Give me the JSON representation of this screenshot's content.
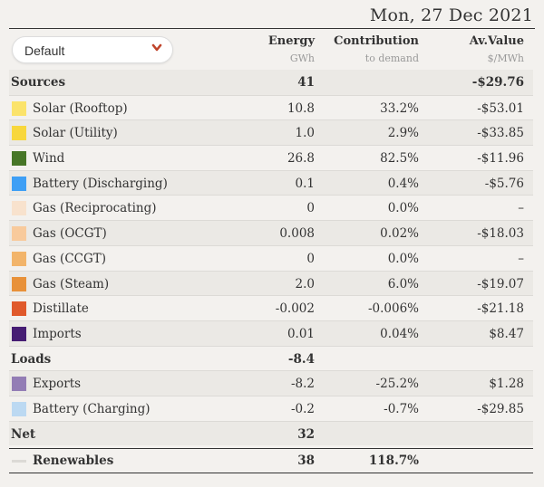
{
  "date": "Mon, 27 Dec 2021",
  "dropdown": {
    "value": "Default"
  },
  "columns": [
    {
      "title": "Energy",
      "sub": "GWh"
    },
    {
      "title": "Contribution",
      "sub": "to demand"
    },
    {
      "title": "Av.Value",
      "sub": "$/MWh"
    }
  ],
  "colors": {
    "solar_rooftop": "#fbe36b",
    "solar_utility": "#f8d73c",
    "wind": "#477627",
    "battery_discharging": "#3e9ff5",
    "gas_recip": "#f8e2cd",
    "gas_ocgt": "#f8ca9c",
    "gas_ccgt": "#f2b46a",
    "gas_steam": "#e89139",
    "distillate": "#e0592b",
    "imports": "#461d73",
    "exports": "#937db5",
    "battery_charging": "#bcd9f2",
    "chevron": "#c0442b"
  },
  "sources": {
    "label": "Sources",
    "energy": "41",
    "value": "-$29.76"
  },
  "rows": [
    {
      "name": "Solar (Rooftop)",
      "energy": "10.8",
      "contrib": "33.2%",
      "value": "-$53.01"
    },
    {
      "name": "Solar (Utility)",
      "energy": "1.0",
      "contrib": "2.9%",
      "value": "-$33.85"
    },
    {
      "name": "Wind",
      "energy": "26.8",
      "contrib": "82.5%",
      "value": "-$11.96"
    },
    {
      "name": "Battery (Discharging)",
      "energy": "0.1",
      "contrib": "0.4%",
      "value": "-$5.76"
    },
    {
      "name": "Gas (Reciprocating)",
      "energy": "0",
      "contrib": "0.0%",
      "value": "–"
    },
    {
      "name": "Gas (OCGT)",
      "energy": "0.008",
      "contrib": "0.02%",
      "value": "-$18.03"
    },
    {
      "name": "Gas (CCGT)",
      "energy": "0",
      "contrib": "0.0%",
      "value": "–"
    },
    {
      "name": "Gas (Steam)",
      "energy": "2.0",
      "contrib": "6.0%",
      "value": "-$19.07"
    },
    {
      "name": "Distillate",
      "energy": "-0.002",
      "contrib": "-0.006%",
      "value": "-$21.18"
    },
    {
      "name": "Imports",
      "energy": "0.01",
      "contrib": "0.04%",
      "value": "$8.47"
    }
  ],
  "loads": {
    "label": "Loads",
    "energy": "-8.4"
  },
  "load_rows": [
    {
      "name": "Exports",
      "energy": "-8.2",
      "contrib": "-25.2%",
      "value": "$1.28"
    },
    {
      "name": "Battery (Charging)",
      "energy": "-0.2",
      "contrib": "-0.7%",
      "value": "-$29.85"
    }
  ],
  "net": {
    "label": "Net",
    "energy": "32"
  },
  "renewables": {
    "label": "Renewables",
    "energy": "38",
    "contrib": "118.7%"
  }
}
